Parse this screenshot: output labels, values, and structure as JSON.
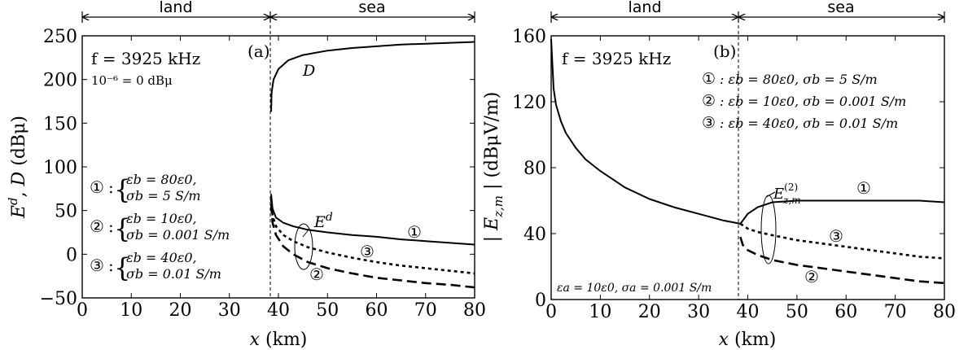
{
  "chart_data": [
    {
      "panel": "a",
      "type": "line",
      "title": "",
      "xlabel": "x (km)",
      "ylabel": "E^d, D (dBμ)",
      "xlim": [
        0,
        80
      ],
      "ylim": [
        -50,
        250
      ],
      "xticks": [
        "0",
        "10",
        "20",
        "30",
        "40",
        "50",
        "60",
        "70",
        "80"
      ],
      "yticks": [
        "−50",
        "0",
        "50",
        "100",
        "150",
        "200",
        "250"
      ],
      "regions": {
        "land": "land",
        "sea": "sea",
        "boundary_km": 38.5
      },
      "annotations": {
        "panel_label": "(a)",
        "freq": "f = 3925 kHz",
        "ref": "10⁻⁶ = 0 dBμ",
        "D_label": "D",
        "E_label": "E",
        "E_sup": "d",
        "legend": [
          {
            "num": "①",
            "line1": "εb = 80ε0,",
            "line2": "σb = 5 S/m"
          },
          {
            "num": "②",
            "line1": "εb = 10ε0,",
            "line2": "σb = 0.001 S/m"
          },
          {
            "num": "③",
            "line1": "εb = 40ε0,",
            "line2": "σb = 0.01 S/m"
          }
        ],
        "curve_marks": [
          "①",
          "③",
          "②"
        ]
      },
      "series": [
        {
          "style": "solid",
          "x": [
            38.5,
            38.6,
            39,
            40,
            42,
            45,
            50,
            55,
            60,
            65,
            70,
            75,
            80
          ],
          "y": [
            163,
            185,
            200,
            212,
            222,
            228,
            233,
            236,
            238,
            240,
            241,
            242,
            243
          ]
        },
        {
          "style": "solid",
          "x": [
            38.5,
            38.8,
            39.5,
            41,
            43,
            46,
            50,
            55,
            60,
            65,
            70,
            75,
            80
          ],
          "y": [
            69,
            52,
            42,
            36,
            32,
            28,
            25,
            22,
            20,
            17,
            15,
            13,
            11
          ]
        },
        {
          "style": "dotted",
          "x": [
            38.5,
            38.8,
            39.5,
            41,
            43,
            46,
            50,
            55,
            60,
            65,
            70,
            75,
            80
          ],
          "y": [
            63,
            44,
            32,
            22,
            15,
            8,
            2,
            -4,
            -9,
            -13,
            -16,
            -19,
            -22
          ]
        },
        {
          "style": "dashed",
          "x": [
            38.5,
            38.8,
            39.5,
            41,
            43,
            46,
            50,
            55,
            60,
            65,
            70,
            75,
            80
          ],
          "y": [
            58,
            36,
            22,
            9,
            0,
            -9,
            -16,
            -22,
            -27,
            -30,
            -33,
            -35,
            -38
          ]
        }
      ]
    },
    {
      "panel": "b",
      "type": "line",
      "title": "",
      "xlabel": "x (km)",
      "ylabel": "| E_z,m | (dBμV/m)",
      "xlim": [
        0,
        80
      ],
      "ylim": [
        0,
        160
      ],
      "xticks": [
        "0",
        "10",
        "20",
        "30",
        "40",
        "50",
        "60",
        "70",
        "80"
      ],
      "yticks": [
        "0",
        "40",
        "80",
        "120",
        "160"
      ],
      "regions": {
        "land": "land",
        "sea": "sea",
        "boundary_km": 38.5
      },
      "annotations": {
        "panel_label": "(b)",
        "freq": "f = 3925 kHz",
        "land_params": "εa = 10ε0, σa = 0.001 S/m",
        "E_label": "E",
        "E_sup": "(2)",
        "E_sub": "z,m",
        "legend": [
          {
            "num": "①",
            "text": ": εb = 80ε0, σb = 5 S/m"
          },
          {
            "num": "②",
            "text": ": εb = 10ε0, σb = 0.001 S/m"
          },
          {
            "num": "③",
            "text": ": εb = 40ε0, σb = 0.01 S/m"
          }
        ],
        "curve_marks": [
          "①",
          "③",
          "②"
        ]
      },
      "series": [
        {
          "style": "solid",
          "x": [
            0,
            0.5,
            1,
            2,
            3,
            5,
            7,
            10,
            15,
            20,
            25,
            30,
            35,
            38.5,
            39,
            40,
            42,
            45,
            50,
            55,
            60,
            65,
            70,
            75,
            80
          ],
          "y": [
            158,
            128,
            118,
            108,
            101,
            92,
            85,
            78,
            68,
            61,
            56,
            52,
            48,
            46,
            48,
            52,
            56,
            59,
            60,
            60,
            60,
            60,
            60,
            60,
            59
          ]
        },
        {
          "style": "dotted",
          "x": [
            38.5,
            39,
            40,
            42,
            45,
            50,
            55,
            60,
            65,
            70,
            75,
            80
          ],
          "y": [
            46,
            45,
            43,
            41,
            39,
            36,
            34,
            32,
            30,
            28,
            26,
            25
          ]
        },
        {
          "style": "dashed",
          "x": [
            38.5,
            39,
            40,
            42,
            45,
            50,
            55,
            60,
            65,
            70,
            75,
            80
          ],
          "y": [
            38,
            33,
            30,
            27,
            24,
            21,
            19,
            17,
            15,
            13,
            11,
            10
          ]
        }
      ]
    }
  ]
}
